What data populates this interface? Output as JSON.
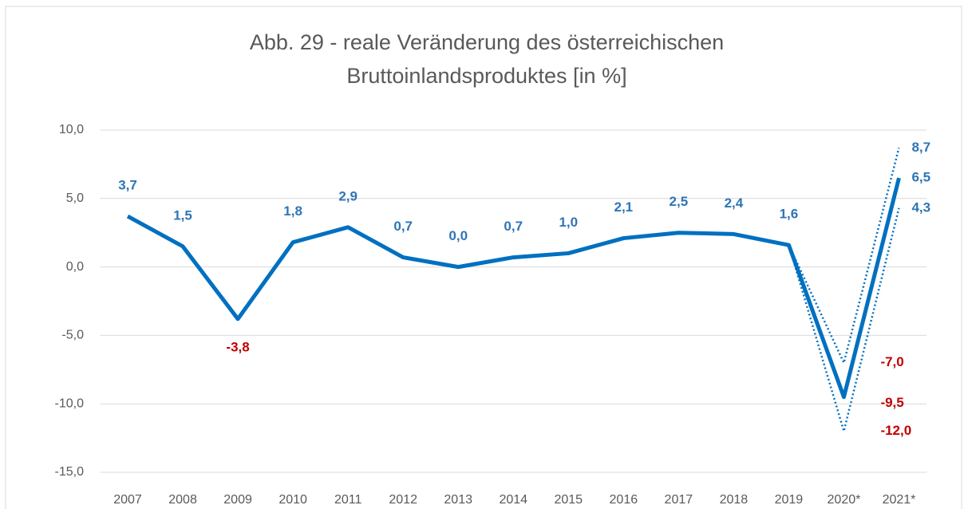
{
  "chart_data": {
    "type": "line",
    "title": [
      "Abb. 29 - reale Veränderung des österreichischen",
      "Bruttoinlandsproduktes [in %]"
    ],
    "categories": [
      "2007",
      "2008",
      "2009",
      "2010",
      "2011",
      "2012",
      "2013",
      "2014",
      "2015",
      "2016",
      "2017",
      "2018",
      "2019",
      "2020*",
      "2021*"
    ],
    "ylim": [
      -15,
      10
    ],
    "yticks": [
      {
        "value": -15,
        "label": "-15,0"
      },
      {
        "value": -10,
        "label": "-10,0"
      },
      {
        "value": -5,
        "label": "-5,0"
      },
      {
        "value": 0,
        "label": "0,0"
      },
      {
        "value": 5,
        "label": "5,0"
      },
      {
        "value": 10,
        "label": "10,0"
      }
    ],
    "grid": true,
    "positive_label_color": "#2e75b6",
    "negative_label_color": "#c00000",
    "series": [
      {
        "color": "#0070c0",
        "style": "solid",
        "values": [
          3.7,
          1.5,
          -3.8,
          1.8,
          2.9,
          0.7,
          0.0,
          0.7,
          1.0,
          2.1,
          2.5,
          2.4,
          1.6,
          -9.5,
          6.5
        ],
        "value_labels": [
          "3,7",
          "1,5",
          "-3,8",
          "1,8",
          "2,9",
          "0,7",
          "0,0",
          "0,7",
          "1,0",
          "2,1",
          "2,5",
          "2,4",
          "1,6",
          "-9,5",
          "6,5"
        ]
      },
      {
        "color": "#0070c0",
        "style": "dotted",
        "values": [
          null,
          null,
          null,
          null,
          null,
          null,
          null,
          null,
          null,
          null,
          null,
          null,
          1.6,
          -7.0,
          8.7
        ],
        "value_labels": [
          null,
          null,
          null,
          null,
          null,
          null,
          null,
          null,
          null,
          null,
          null,
          null,
          null,
          "-7,0",
          "8,7"
        ]
      },
      {
        "color": "#0070c0",
        "style": "dotted",
        "values": [
          null,
          null,
          null,
          null,
          null,
          null,
          null,
          null,
          null,
          null,
          null,
          null,
          1.6,
          -12.0,
          4.3
        ],
        "value_labels": [
          null,
          null,
          null,
          null,
          null,
          null,
          null,
          null,
          null,
          null,
          null,
          null,
          null,
          "-12,0",
          "4,3"
        ]
      }
    ]
  }
}
